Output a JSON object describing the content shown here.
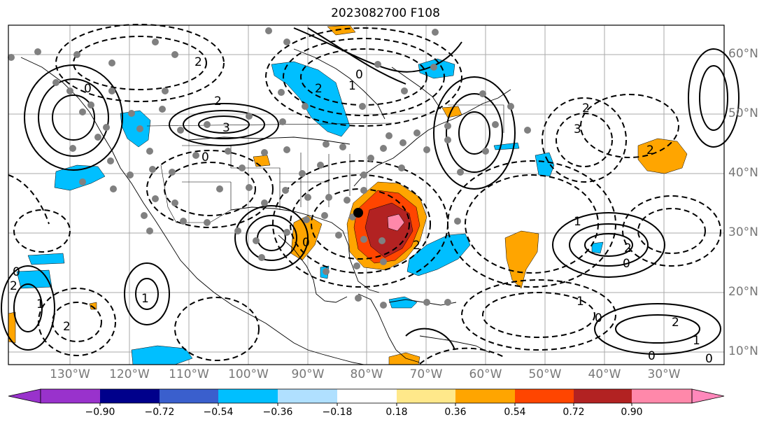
{
  "title": "2023082700 F108",
  "lat_labels": [
    "60°N",
    "50°N",
    "40°N",
    "30°N",
    "20°N",
    "10°N"
  ],
  "lon_labels": [
    "130°W",
    "120°W",
    "110°W",
    "100°W",
    "90°W",
    "80°W",
    "70°W",
    "60°W",
    "50°W",
    "40°W",
    "30°W"
  ],
  "contour_labels": [
    "2",
    "0",
    "3",
    "2",
    "1",
    "0",
    "2",
    "3",
    "0",
    "2",
    "2",
    "1",
    "2",
    "0",
    "2",
    "1",
    "0",
    "0",
    "2",
    "1",
    "0",
    "2",
    "1",
    "1",
    "0",
    "2",
    "0"
  ],
  "colorbar": {
    "ticks": [
      "−0.90",
      "−0.72",
      "−0.54",
      "−0.36",
      "−0.18",
      "0.18",
      "0.36",
      "0.54",
      "0.72",
      "0.90"
    ],
    "colors": [
      "#9932cc",
      "#00008b",
      "#3a5fcd",
      "#00bfff",
      "#b0e0ff",
      "#ffffff",
      "#ffe88a",
      "#ffa500",
      "#ff4500",
      "#b22222",
      "#ff88aa",
      "#ff88bb"
    ]
  },
  "colors": {
    "blue_fill": "#00bfff",
    "orange_fill": "#ffa500",
    "red_fill": "#ff4500",
    "darkred_fill": "#b22222",
    "pink_fill": "#ff88aa",
    "dots": "#808080"
  }
}
